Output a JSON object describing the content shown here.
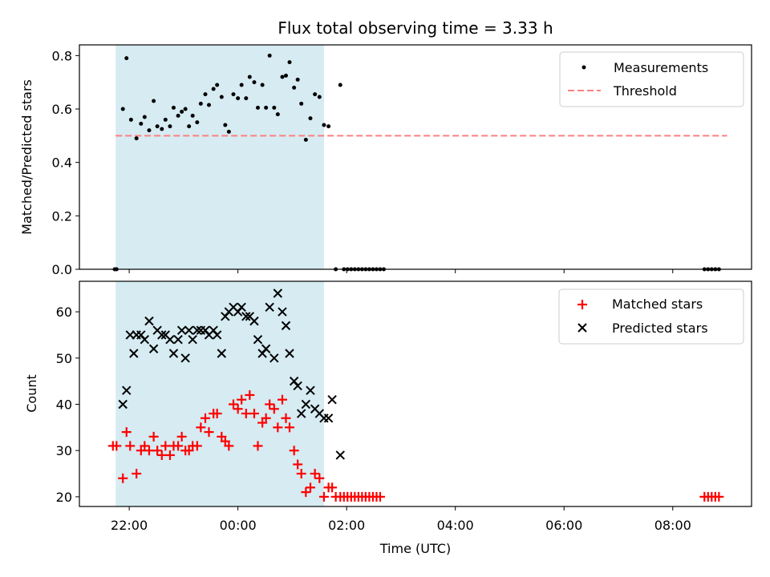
{
  "chart_data": [
    {
      "type": "scatter",
      "title": "Flux total observing time = 3.33 h",
      "xlabel": "",
      "ylabel": "Matched/Predicted stars",
      "xlim": [
        "21:05",
        "09:27"
      ],
      "ylim": [
        0,
        0.84
      ],
      "y_ticks": [
        "0.0",
        "0.2",
        "0.4",
        "0.6",
        "0.8"
      ],
      "x_ticks": [
        "22:00",
        "00:00",
        "02:00",
        "04:00",
        "06:00",
        "08:00"
      ],
      "highlight_span": [
        "21:45",
        "01:35"
      ],
      "threshold": {
        "name": "Threshold",
        "y": 0.5,
        "x_start": "21:45",
        "x_end": "09:00",
        "color": "#ff7f7f"
      },
      "series": [
        {
          "name": "Measurements",
          "color": "#000000",
          "points": [
            [
              "21:44",
              0.0
            ],
            [
              "21:46",
              0.0
            ],
            [
              "21:53",
              0.6
            ],
            [
              "21:57",
              0.79
            ],
            [
              "22:02",
              0.56
            ],
            [
              "22:08",
              0.49
            ],
            [
              "22:13",
              0.545
            ],
            [
              "22:17",
              0.57
            ],
            [
              "22:22",
              0.52
            ],
            [
              "22:27",
              0.63
            ],
            [
              "22:31",
              0.535
            ],
            [
              "22:36",
              0.525
            ],
            [
              "22:40",
              0.56
            ],
            [
              "22:45",
              0.535
            ],
            [
              "22:49",
              0.605
            ],
            [
              "22:54",
              0.575
            ],
            [
              "22:58",
              0.59
            ],
            [
              "23:02",
              0.6
            ],
            [
              "23:06",
              0.535
            ],
            [
              "23:10",
              0.575
            ],
            [
              "23:15",
              0.55
            ],
            [
              "23:19",
              0.62
            ],
            [
              "23:24",
              0.655
            ],
            [
              "23:28",
              0.615
            ],
            [
              "23:33",
              0.675
            ],
            [
              "23:37",
              0.69
            ],
            [
              "23:42",
              0.645
            ],
            [
              "23:46",
              0.54
            ],
            [
              "23:50",
              0.515
            ],
            [
              "23:55",
              0.655
            ],
            [
              "00:00",
              0.64
            ],
            [
              "00:04",
              0.69
            ],
            [
              "00:09",
              0.64
            ],
            [
              "00:13",
              0.72
            ],
            [
              "00:18",
              0.7
            ],
            [
              "00:22",
              0.605
            ],
            [
              "00:27",
              0.69
            ],
            [
              "00:31",
              0.605
            ],
            [
              "00:35",
              0.8
            ],
            [
              "00:40",
              0.605
            ],
            [
              "00:44",
              0.58
            ],
            [
              "00:49",
              0.72
            ],
            [
              "00:53",
              0.725
            ],
            [
              "00:57",
              0.775
            ],
            [
              "01:02",
              0.68
            ],
            [
              "01:06",
              0.71
            ],
            [
              "01:10",
              0.62
            ],
            [
              "01:15",
              0.485
            ],
            [
              "01:20",
              0.565
            ],
            [
              "01:25",
              0.655
            ],
            [
              "01:30",
              0.645
            ],
            [
              "01:35",
              0.54
            ],
            [
              "01:40",
              0.535
            ],
            [
              "01:48",
              0.0
            ],
            [
              "01:53",
              0.69
            ],
            [
              "01:57",
              0.0
            ],
            [
              "02:01",
              0.0
            ],
            [
              "02:05",
              0.0
            ],
            [
              "02:09",
              0.0
            ],
            [
              "02:13",
              0.0
            ],
            [
              "02:17",
              0.0
            ],
            [
              "02:21",
              0.0
            ],
            [
              "02:25",
              0.0
            ],
            [
              "02:29",
              0.0
            ],
            [
              "02:33",
              0.0
            ],
            [
              "02:37",
              0.0
            ],
            [
              "02:41",
              0.0
            ],
            [
              "08:35",
              0.0
            ],
            [
              "08:39",
              0.0
            ],
            [
              "08:43",
              0.0
            ],
            [
              "08:47",
              0.0
            ],
            [
              "08:51",
              0.0
            ]
          ]
        }
      ],
      "legend": {
        "position": "top-right",
        "entries": [
          "Measurements",
          "Threshold"
        ]
      }
    },
    {
      "type": "scatter",
      "title": "",
      "xlabel": "Time (UTC)",
      "ylabel": "Count",
      "xlim": [
        "21:05",
        "09:27"
      ],
      "ylim": [
        17.9,
        66.6
      ],
      "y_ticks": [
        "20",
        "30",
        "40",
        "50",
        "60"
      ],
      "x_ticks": [
        "22:00",
        "00:00",
        "02:00",
        "04:00",
        "06:00",
        "08:00"
      ],
      "highlight_span": [
        "21:45",
        "01:35"
      ],
      "series": [
        {
          "name": "Matched stars",
          "color": "#ff0000",
          "marker": "plus",
          "points": [
            [
              "21:42",
              31
            ],
            [
              "21:46",
              31
            ],
            [
              "21:53",
              24
            ],
            [
              "21:57",
              34
            ],
            [
              "22:01",
              31
            ],
            [
              "22:08",
              25
            ],
            [
              "22:13",
              30
            ],
            [
              "22:17",
              31
            ],
            [
              "22:22",
              30
            ],
            [
              "22:27",
              33
            ],
            [
              "22:31",
              30
            ],
            [
              "22:36",
              29
            ],
            [
              "22:40",
              31
            ],
            [
              "22:45",
              29
            ],
            [
              "22:49",
              31
            ],
            [
              "22:54",
              31
            ],
            [
              "22:58",
              33
            ],
            [
              "23:02",
              30
            ],
            [
              "23:06",
              30
            ],
            [
              "23:10",
              31
            ],
            [
              "23:15",
              31
            ],
            [
              "23:19",
              35
            ],
            [
              "23:24",
              37
            ],
            [
              "23:28",
              34
            ],
            [
              "23:33",
              38
            ],
            [
              "23:37",
              38
            ],
            [
              "23:42",
              33
            ],
            [
              "23:46",
              32
            ],
            [
              "23:50",
              31
            ],
            [
              "23:55",
              40
            ],
            [
              "00:00",
              39
            ],
            [
              "00:04",
              41
            ],
            [
              "00:09",
              38
            ],
            [
              "00:13",
              42
            ],
            [
              "00:18",
              38
            ],
            [
              "00:22",
              31
            ],
            [
              "00:27",
              36
            ],
            [
              "00:31",
              37
            ],
            [
              "00:35",
              40
            ],
            [
              "00:40",
              39
            ],
            [
              "00:44",
              35
            ],
            [
              "00:49",
              41
            ],
            [
              "00:53",
              37
            ],
            [
              "00:57",
              35
            ],
            [
              "01:02",
              30
            ],
            [
              "01:06",
              27
            ],
            [
              "01:10",
              25
            ],
            [
              "01:15",
              21
            ],
            [
              "01:20",
              22
            ],
            [
              "01:25",
              25
            ],
            [
              "01:30",
              24
            ],
            [
              "01:35",
              20
            ],
            [
              "01:40",
              22
            ],
            [
              "01:44",
              22
            ],
            [
              "01:48",
              20
            ],
            [
              "01:53",
              20
            ],
            [
              "01:57",
              20
            ],
            [
              "02:01",
              20
            ],
            [
              "02:05",
              20
            ],
            [
              "02:09",
              20
            ],
            [
              "02:13",
              20
            ],
            [
              "02:17",
              20
            ],
            [
              "02:21",
              20
            ],
            [
              "02:25",
              20
            ],
            [
              "02:29",
              20
            ],
            [
              "02:33",
              20
            ],
            [
              "02:37",
              20
            ],
            [
              "08:35",
              20
            ],
            [
              "08:39",
              20
            ],
            [
              "08:43",
              20
            ],
            [
              "08:47",
              20
            ],
            [
              "08:51",
              20
            ]
          ]
        },
        {
          "name": "Predicted stars",
          "color": "#000000",
          "marker": "x",
          "points": [
            [
              "21:53",
              40
            ],
            [
              "21:57",
              43
            ],
            [
              "22:01",
              55
            ],
            [
              "22:05",
              51
            ],
            [
              "22:08",
              55
            ],
            [
              "22:13",
              55
            ],
            [
              "22:17",
              54
            ],
            [
              "22:22",
              58
            ],
            [
              "22:27",
              52
            ],
            [
              "22:31",
              56
            ],
            [
              "22:36",
              55
            ],
            [
              "22:40",
              55
            ],
            [
              "22:45",
              54
            ],
            [
              "22:49",
              51
            ],
            [
              "22:54",
              54
            ],
            [
              "22:58",
              56
            ],
            [
              "23:02",
              50
            ],
            [
              "23:06",
              56
            ],
            [
              "23:10",
              54
            ],
            [
              "23:15",
              56
            ],
            [
              "23:19",
              56
            ],
            [
              "23:24",
              56
            ],
            [
              "23:28",
              55
            ],
            [
              "23:33",
              56
            ],
            [
              "23:37",
              55
            ],
            [
              "23:42",
              51
            ],
            [
              "23:46",
              59
            ],
            [
              "23:50",
              60
            ],
            [
              "23:55",
              61
            ],
            [
              "00:00",
              60
            ],
            [
              "00:04",
              61
            ],
            [
              "00:09",
              59
            ],
            [
              "00:13",
              59
            ],
            [
              "00:18",
              58
            ],
            [
              "00:22",
              54
            ],
            [
              "00:27",
              51
            ],
            [
              "00:31",
              52
            ],
            [
              "00:35",
              61
            ],
            [
              "00:40",
              50
            ],
            [
              "00:44",
              64
            ],
            [
              "00:49",
              60
            ],
            [
              "00:53",
              57
            ],
            [
              "00:57",
              51
            ],
            [
              "01:02",
              45
            ],
            [
              "01:06",
              44
            ],
            [
              "01:10",
              38
            ],
            [
              "01:15",
              40
            ],
            [
              "01:20",
              43
            ],
            [
              "01:25",
              39
            ],
            [
              "01:30",
              38
            ],
            [
              "01:35",
              37
            ],
            [
              "01:40",
              37
            ],
            [
              "01:44",
              41
            ],
            [
              "01:53",
              29
            ]
          ]
        }
      ],
      "legend": {
        "position": "top-right",
        "entries": [
          "Matched stars",
          "Predicted stars"
        ]
      }
    }
  ]
}
